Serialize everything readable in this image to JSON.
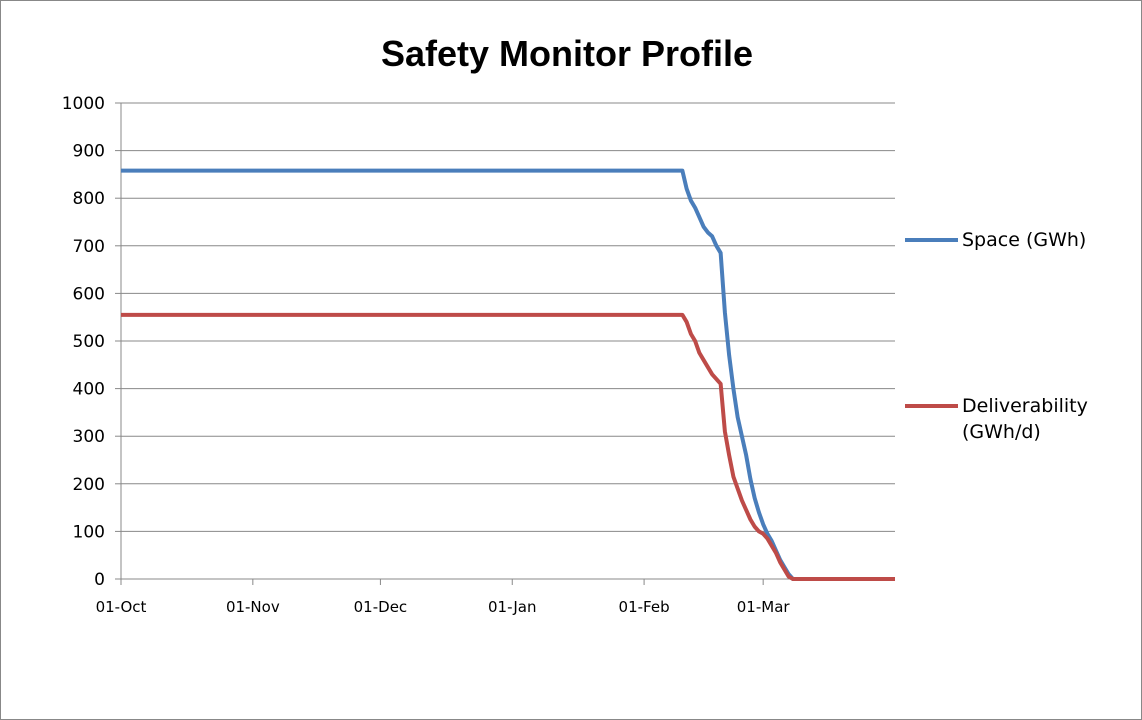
{
  "chart_data": {
    "type": "line",
    "title": "Safety Monitor Profile",
    "x": [
      0,
      132,
      133,
      134,
      135,
      136,
      137,
      138,
      139,
      140,
      141,
      142,
      143,
      144,
      145,
      146,
      147,
      148,
      149,
      150,
      151,
      152,
      153,
      154,
      155,
      156,
      157,
      158,
      182
    ],
    "series": [
      {
        "name": "Space (GWh)",
        "color": "#4a7ebb",
        "values": [
          858,
          858,
          820,
          795,
          780,
          760,
          740,
          728,
          720,
          700,
          685,
          560,
          470,
          400,
          340,
          300,
          260,
          210,
          170,
          140,
          115,
          95,
          80,
          60,
          40,
          25,
          10,
          0,
          0
        ]
      },
      {
        "name": "Deliverability (GWh/d)",
        "color": "#be4b48",
        "values": [
          555,
          555,
          540,
          515,
          500,
          475,
          460,
          445,
          430,
          420,
          410,
          310,
          260,
          215,
          190,
          165,
          145,
          125,
          110,
          100,
          95,
          85,
          70,
          55,
          35,
          20,
          5,
          0,
          0
        ]
      }
    ],
    "xlim": [
      0,
      182
    ],
    "xticks": [
      {
        "value": 0,
        "label": "01-Oct"
      },
      {
        "value": 31,
        "label": "01-Nov"
      },
      {
        "value": 61,
        "label": "01-Dec"
      },
      {
        "value": 92,
        "label": "01-Jan"
      },
      {
        "value": 123,
        "label": "01-Feb"
      },
      {
        "value": 151,
        "label": "01-Mar"
      }
    ],
    "ylim": [
      0,
      1000
    ],
    "yticks": [
      0,
      100,
      200,
      300,
      400,
      500,
      600,
      700,
      800,
      900,
      1000
    ],
    "grid": true,
    "legend": "right"
  }
}
